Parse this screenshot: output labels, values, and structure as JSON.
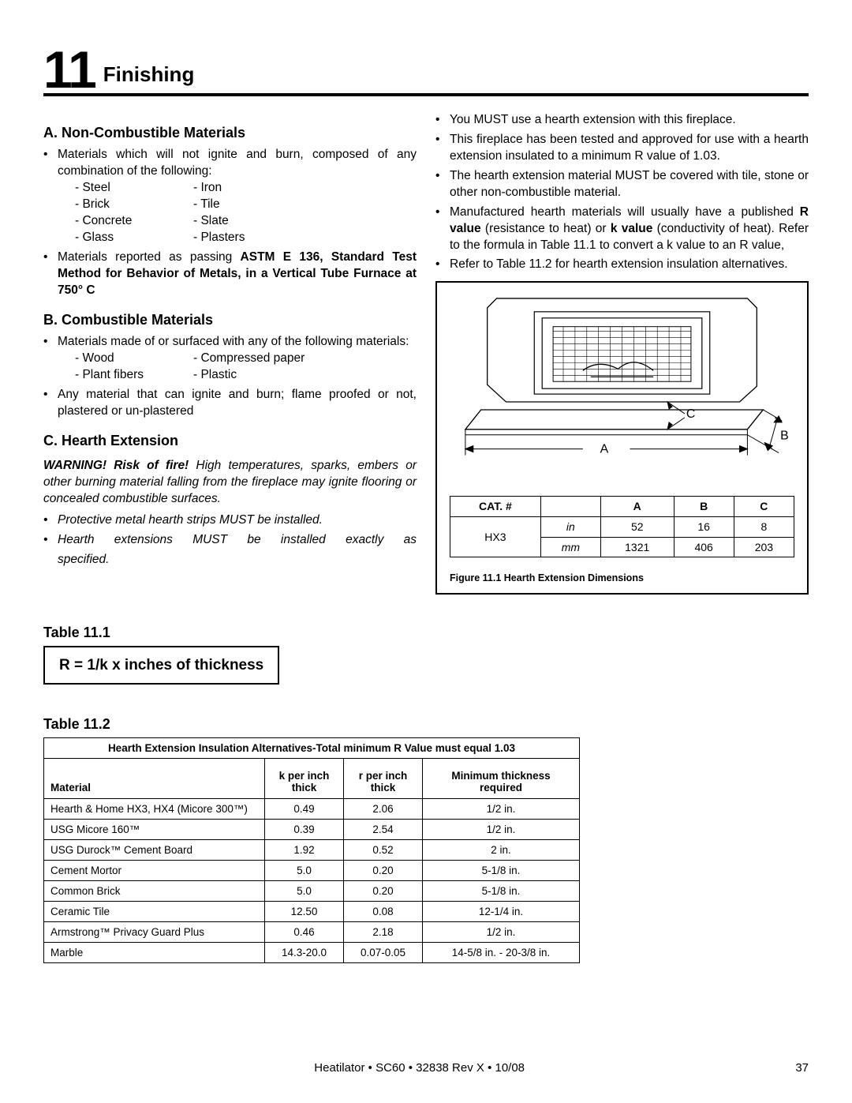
{
  "chapter_number": "11",
  "chapter_title": "Finishing",
  "sectionA": {
    "heading": "A. Non-Combustible Materials",
    "intro": "Materials which will not ignite and burn, composed of any combination of the following:",
    "mats_left": [
      "Steel",
      "Brick",
      "Concrete",
      "Glass"
    ],
    "mats_right": [
      "Iron",
      "Tile",
      "Slate",
      "Plasters"
    ],
    "astm_pre": "Materials reported as passing ",
    "astm_bold": "ASTM E 136, Standard Test Method for Behavior of Metals, in a Vertical Tube Furnace at 750° C"
  },
  "sectionB": {
    "heading": "B. Combustible Materials",
    "intro": "Materials made of or surfaced with any of the following materials:",
    "mats_left": [
      "Wood",
      "Plant fibers"
    ],
    "mats_right": [
      "Compressed paper",
      "Plastic"
    ],
    "tail": "Any material that can ignite and burn; flame proofed or not, plastered or un-plastered"
  },
  "sectionC": {
    "heading": "C. Hearth Extension",
    "warn_bold": "WARNING! Risk of fire!",
    "warn_rest": " High temperatures, sparks, embers or other burning material falling from the fireplace may ignite flooring or concealed combustible surfaces.",
    "b1": "Protective metal hearth strips MUST be installed.",
    "b2": "Hearth extensions MUST be installed exactly as specified."
  },
  "right_bullets": {
    "r1": "You MUST use a hearth extension with this fireplace.",
    "r2": "This fireplace has been tested and approved for use with a hearth extension insulated to a minimum R value of 1.03.",
    "r3": "The hearth extension material MUST be covered with tile, stone or other non-combustible material.",
    "r4_pre": "Manufactured hearth materials will usually have a published ",
    "r4_b1": "R value",
    "r4_mid": " (resistance to heat) or ",
    "r4_b2": "k value",
    "r4_post": " (conductivity of heat). Refer to the formula in Table 11.1 to convert a k value to an R value,",
    "r5": "Refer to Table 11.2 for hearth extension insulation alternatives."
  },
  "table111": {
    "label": "Table 11.1",
    "formula": "R = 1/k x inches of thickness"
  },
  "dim": {
    "cat_hdr": "CAT. #",
    "a": "A",
    "b": "B",
    "c": "C",
    "cat_val": "HX3",
    "in_label": "in",
    "mm_label": "mm",
    "a_in": "52",
    "b_in": "16",
    "c_in": "8",
    "a_mm": "1321",
    "b_mm": "406",
    "c_mm": "203",
    "caption": "Figure 11.1  Hearth Extension Dimensions"
  },
  "fig_labels": {
    "A": "A",
    "B": "B",
    "C": "C"
  },
  "table112": {
    "label": "Table 11.2",
    "title": "Hearth Extension Insulation Alternatives-Total minimum R Value must equal 1.03",
    "col_mat": "Material",
    "col_k": "k per inch thick",
    "col_r": "r per inch thick",
    "col_min": "Minimum thickness required",
    "rows": [
      {
        "m": "Hearth & Home HX3, HX4 (Micore 300™)",
        "k": "0.49",
        "r": "2.06",
        "t": "1/2 in."
      },
      {
        "m": "USG Micore 160™",
        "k": "0.39",
        "r": "2.54",
        "t": "1/2 in."
      },
      {
        "m": "USG Durock™ Cement Board",
        "k": "1.92",
        "r": "0.52",
        "t": "2 in."
      },
      {
        "m": "Cement Mortor",
        "k": "5.0",
        "r": "0.20",
        "t": "5-1/8 in."
      },
      {
        "m": "Common Brick",
        "k": "5.0",
        "r": "0.20",
        "t": "5-1/8 in."
      },
      {
        "m": "Ceramic Tile",
        "k": "12.50",
        "r": "0.08",
        "t": "12-1/4 in."
      },
      {
        "m": "Armstrong™ Privacy Guard Plus",
        "k": "0.46",
        "r": "2.18",
        "t": "1/2 in."
      },
      {
        "m": "Marble",
        "k": "14.3-20.0",
        "r": "0.07-0.05",
        "t": "14-5/8 in. - 20-3/8 in."
      }
    ]
  },
  "footer": {
    "center": "Heatilator • SC60 • 32838 Rev X • 10/08",
    "page": "37"
  }
}
